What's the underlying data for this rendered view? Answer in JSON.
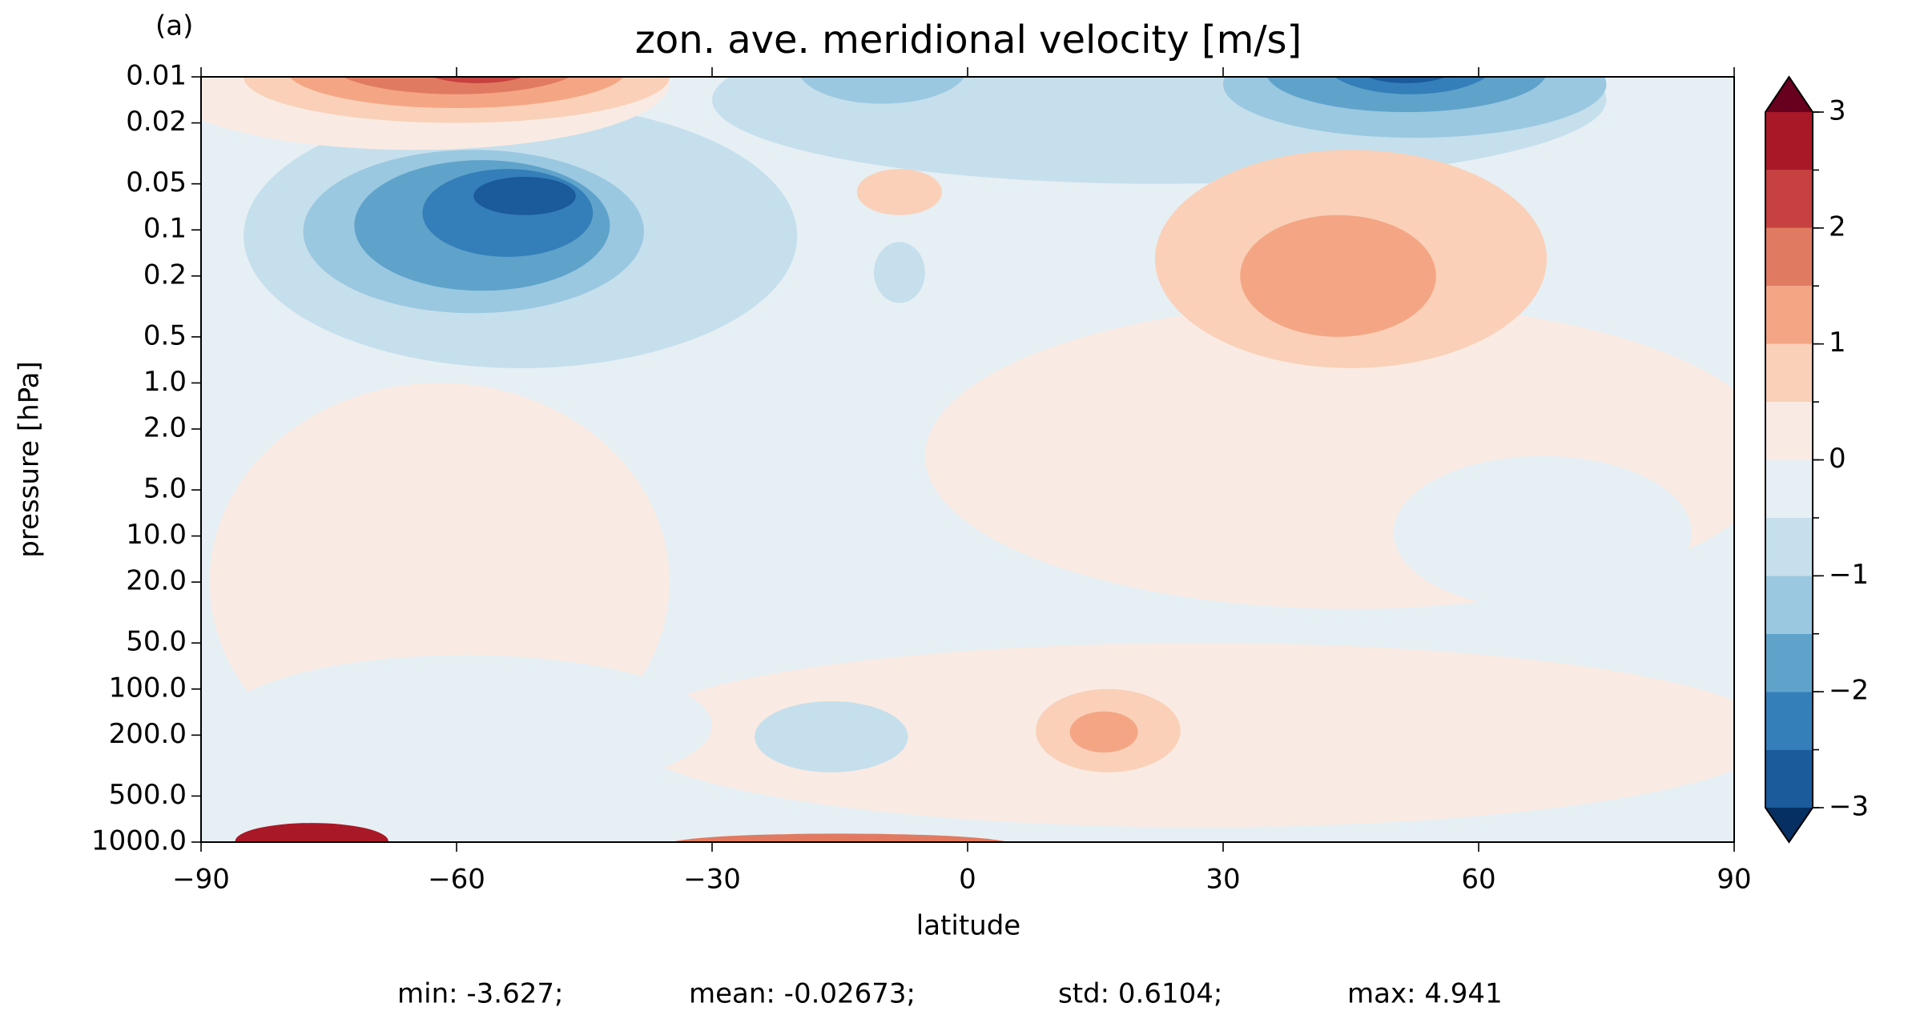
{
  "chart_data": {
    "type": "contourf",
    "panel_label": "(a)",
    "title": "zon. ave. meridional velocity [m/s]",
    "xlabel": "latitude",
    "ylabel": "pressure [hPa]",
    "xlim": [
      -90,
      90
    ],
    "xticks": [
      {
        "value": -90,
        "label": "−90"
      },
      {
        "value": -60,
        "label": "−60"
      },
      {
        "value": -30,
        "label": "−30"
      },
      0,
      30,
      60,
      90
    ],
    "ylim": [
      1000,
      0.01
    ],
    "log_y": true,
    "yticks": [
      0.01,
      0.02,
      0.05,
      0.1,
      0.2,
      0.5,
      {
        "value": 1,
        "label": "1.0"
      },
      {
        "value": 2,
        "label": "2.0"
      },
      {
        "value": 5,
        "label": "5.0"
      },
      {
        "value": 10,
        "label": "10.0"
      },
      {
        "value": 20,
        "label": "20.0"
      },
      {
        "value": 50,
        "label": "50.0"
      },
      {
        "value": 100,
        "label": "100.0"
      },
      {
        "value": 200,
        "label": "200.0"
      },
      {
        "value": 500,
        "label": "500.0"
      },
      {
        "value": 1000,
        "label": "1000.0"
      }
    ],
    "levels": [
      -3,
      -2.5,
      -2,
      -1.5,
      -1,
      -0.5,
      0,
      0.5,
      1,
      1.5,
      2,
      2.5,
      3
    ],
    "colors": [
      "#1b5a9b",
      "#347fb9",
      "#5fa3cb",
      "#9ac8e0",
      "#c6dfec",
      "#e6eff4",
      "#f9ebe3",
      "#fad0b8",
      "#f4a684",
      "#e07b62",
      "#c6413f",
      "#a91827"
    ],
    "under_color": "#053061",
    "over_color": "#67001f",
    "cbar_ticks": [
      {
        "value": 3,
        "label": "3"
      },
      {
        "value": 2,
        "label": "2"
      },
      {
        "value": 1,
        "label": "1"
      },
      0,
      {
        "value": -1,
        "label": "−1"
      },
      {
        "value": -2,
        "label": "−2"
      },
      {
        "value": -3,
        "label": "−3"
      }
    ],
    "regions": [
      {
        "value": -0.25,
        "lat": [
          -90,
          90
        ],
        "p": [
          0.01,
          1000
        ]
      },
      {
        "value": 0.25,
        "lat": [
          -89,
          -35
        ],
        "p": [
          1,
          400
        ]
      },
      {
        "value": 0.25,
        "lat": [
          -5,
          95
        ],
        "p": [
          0.3,
          30
        ]
      },
      {
        "value": 0.25,
        "lat": [
          -40,
          95
        ],
        "p": [
          50,
          800
        ]
      },
      {
        "value": -0.25,
        "lat": [
          50,
          85
        ],
        "p": [
          3,
          30
        ]
      },
      {
        "value": -0.25,
        "lat": [
          -88,
          -30
        ],
        "p": [
          60,
          500
        ]
      },
      {
        "value": -0.75,
        "lat": [
          -85,
          -20
        ],
        "p": [
          0.015,
          0.8
        ]
      },
      {
        "value": -0.75,
        "lat": [
          -30,
          75
        ],
        "p": [
          0.004,
          0.05
        ]
      },
      {
        "value": 0.25,
        "lat": [
          -95,
          -35
        ],
        "p": [
          0.004,
          0.03
        ]
      },
      {
        "value": 0.75,
        "lat": [
          -85,
          -35
        ],
        "p": [
          0.005,
          0.02
        ]
      },
      {
        "value": 1.25,
        "lat": [
          -80,
          -40
        ],
        "p": [
          0.005,
          0.016
        ]
      },
      {
        "value": 1.75,
        "lat": [
          -75,
          -45
        ],
        "p": [
          0.005,
          0.013
        ]
      },
      {
        "value": 2.25,
        "lat": [
          -65,
          -50
        ],
        "p": [
          0.006,
          0.011
        ]
      },
      {
        "value": -1.25,
        "lat": [
          -78,
          -38
        ],
        "p": [
          0.03,
          0.35
        ]
      },
      {
        "value": -1.75,
        "lat": [
          -72,
          -42
        ],
        "p": [
          0.035,
          0.25
        ]
      },
      {
        "value": -2.25,
        "lat": [
          -64,
          -44
        ],
        "p": [
          0.04,
          0.15
        ]
      },
      {
        "value": -2.75,
        "lat": [
          -58,
          -46
        ],
        "p": [
          0.045,
          0.08
        ]
      },
      {
        "value": -1.25,
        "lat": [
          -20,
          0
        ],
        "p": [
          0.005,
          0.015
        ]
      },
      {
        "value": -1.25,
        "lat": [
          30,
          75
        ],
        "p": [
          0.005,
          0.025
        ]
      },
      {
        "value": -1.75,
        "lat": [
          35,
          68
        ],
        "p": [
          0.005,
          0.017
        ]
      },
      {
        "value": -2.25,
        "lat": [
          42,
          62
        ],
        "p": [
          0.005,
          0.013
        ]
      },
      {
        "value": -2.75,
        "lat": [
          45,
          58
        ],
        "p": [
          0.006,
          0.011
        ]
      },
      {
        "value": 0.75,
        "lat": [
          22,
          68
        ],
        "p": [
          0.03,
          0.8
        ]
      },
      {
        "value": 1.25,
        "lat": [
          32,
          55
        ],
        "p": [
          0.08,
          0.5
        ]
      },
      {
        "value": 0.75,
        "lat": [
          -13,
          -3
        ],
        "p": [
          0.04,
          0.08
        ]
      },
      {
        "value": -0.75,
        "lat": [
          -11,
          -5
        ],
        "p": [
          0.12,
          0.3
        ]
      },
      {
        "value": 0.75,
        "lat": [
          8,
          25
        ],
        "p": [
          100,
          350
        ]
      },
      {
        "value": 1.25,
        "lat": [
          12,
          20
        ],
        "p": [
          140,
          260
        ]
      },
      {
        "value": -0.75,
        "lat": [
          -25,
          -7
        ],
        "p": [
          120,
          350
        ]
      },
      {
        "value": 2.75,
        "lat": [
          -86,
          -68
        ],
        "p": [
          750,
          1300
        ]
      },
      {
        "value": 1.75,
        "lat": [
          -35,
          5
        ],
        "p": [
          880,
          1200
        ]
      }
    ],
    "stats": [
      "min: -3.627;",
      "mean: -0.02673;",
      "std: 0.6104;",
      "max: 4.941"
    ]
  }
}
